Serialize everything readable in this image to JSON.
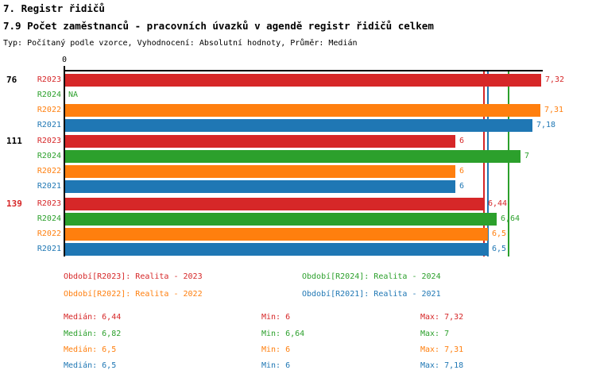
{
  "header": {
    "title1": "7. Registr řidičů",
    "title2": "7.9 Počet zaměstnanců - pracovních úvazků v agendě registr řidičů celkem",
    "subtitle": "Typ: Počítaný podle vzorce, Vyhodnocení: Absolutní hodnoty, Průměr: Medián"
  },
  "chart_data": {
    "type": "bar",
    "orientation": "horizontal",
    "value_axis": {
      "origin_label": "0",
      "min": 0,
      "max": 7.35,
      "grid": false
    },
    "series": [
      {
        "id": "R2023",
        "name": "Realita - 2023",
        "color": "#d62728"
      },
      {
        "id": "R2024",
        "name": "Realita - 2024",
        "color": "#2ca02c"
      },
      {
        "id": "R2022",
        "name": "Realita - 2022",
        "color": "#ff7f0e"
      },
      {
        "id": "R2021",
        "name": "Realita - 2021",
        "color": "#1f77b4"
      }
    ],
    "groups": [
      {
        "label": "76",
        "label_color": "#000000",
        "values": [
          {
            "series": "R2023",
            "value": 7.32,
            "display": "7,32"
          },
          {
            "series": "R2024",
            "value": null,
            "display": "NA"
          },
          {
            "series": "R2022",
            "value": 7.31,
            "display": "7,31"
          },
          {
            "series": "R2021",
            "value": 7.18,
            "display": "7,18"
          }
        ]
      },
      {
        "label": "111",
        "label_color": "#000000",
        "values": [
          {
            "series": "R2023",
            "value": 6,
            "display": "6"
          },
          {
            "series": "R2024",
            "value": 7,
            "display": "7"
          },
          {
            "series": "R2022",
            "value": 6,
            "display": "6"
          },
          {
            "series": "R2021",
            "value": 6,
            "display": "6"
          }
        ]
      },
      {
        "label": "139",
        "label_color": "#d62728",
        "values": [
          {
            "series": "R2023",
            "value": 6.44,
            "display": "6,44"
          },
          {
            "series": "R2024",
            "value": 6.64,
            "display": "6,64"
          },
          {
            "series": "R2022",
            "value": 6.5,
            "display": "6,5"
          },
          {
            "series": "R2021",
            "value": 6.5,
            "display": "6,5"
          }
        ]
      }
    ],
    "median_lines": [
      {
        "series": "R2022",
        "value": 6.5,
        "color": "#ff7f0e"
      },
      {
        "series": "R2023",
        "value": 6.44,
        "color": "#d62728"
      },
      {
        "series": "R2021",
        "value": 6.5,
        "color": "#1f77b4"
      },
      {
        "series": "R2024",
        "value": 6.82,
        "color": "#2ca02c"
      }
    ]
  },
  "legend": {
    "items": [
      {
        "label": "Období[R2023]: Realita - 2023",
        "color": "#d62728"
      },
      {
        "label": "Období[R2024]: Realita - 2024",
        "color": "#2ca02c"
      },
      {
        "label": "Období[R2022]: Realita - 2022",
        "color": "#ff7f0e"
      },
      {
        "label": "Období[R2021]: Realita - 2021",
        "color": "#1f77b4"
      }
    ]
  },
  "stats": {
    "rows": [
      {
        "color": "#d62728",
        "median": "Medián: 6,44",
        "min": "Min: 6",
        "max": "Max: 7,32"
      },
      {
        "color": "#2ca02c",
        "median": "Medián: 6,82",
        "min": "Min: 6,64",
        "max": "Max: 7"
      },
      {
        "color": "#ff7f0e",
        "median": "Medián: 6,5",
        "min": "Min: 6",
        "max": "Max: 7,31"
      },
      {
        "color": "#1f77b4",
        "median": "Medián: 6,5",
        "min": "Min: 6",
        "max": "Max: 7,18"
      }
    ]
  }
}
